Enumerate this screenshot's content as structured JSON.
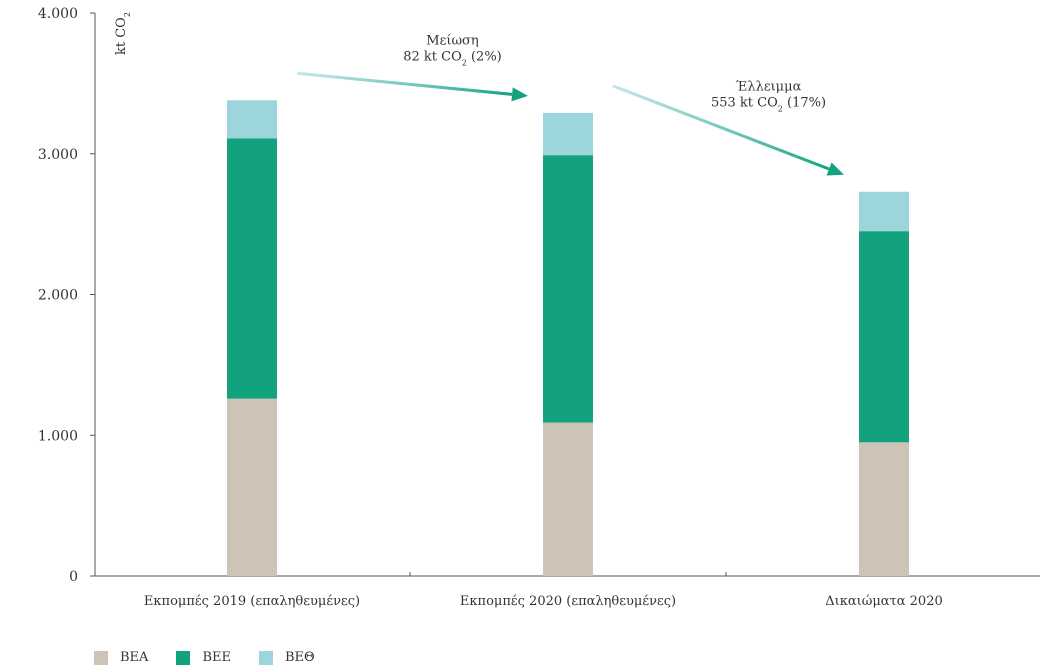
{
  "chart_data": {
    "type": "bar",
    "stacked": true,
    "ylabel": "kt CO",
    "ylabel_sub": "2",
    "ylim": [
      0,
      4000
    ],
    "yticks": [
      {
        "value": 0,
        "label": "0"
      },
      {
        "value": 1000,
        "label": "1.000"
      },
      {
        "value": 2000,
        "label": "2.000"
      },
      {
        "value": 3000,
        "label": "3.000"
      },
      {
        "value": 4000,
        "label": "4.000"
      }
    ],
    "categories": [
      "Εκπομπές 2019 (επαληθευμένες)",
      "Εκπομπές 2020 (επαληθευμένες)",
      "Δικαιώματα 2020"
    ],
    "series": [
      {
        "name": "ΒΕΑ",
        "color": "#cdc3b7",
        "values": [
          1260,
          1090,
          950
        ]
      },
      {
        "name": "ΒΕΕ",
        "color": "#12a37e",
        "values": [
          1850,
          1900,
          1500
        ]
      },
      {
        "name": "ΒΕΘ",
        "color": "#9dd5dc",
        "values": [
          270,
          300,
          280
        ]
      }
    ],
    "annotations": [
      {
        "from": 0,
        "to": 1,
        "line1": "Μείωση",
        "line2_pre": "82 kt CO",
        "line2_sub": "2",
        "line2_post": " (2%)"
      },
      {
        "from": 1,
        "to": 2,
        "line1": "Έλλειμμα",
        "line2_pre": "553 kt CO",
        "line2_sub": "2",
        "line2_post": " (17%)"
      }
    ],
    "legend_position": "bottom-left",
    "grid": false
  }
}
